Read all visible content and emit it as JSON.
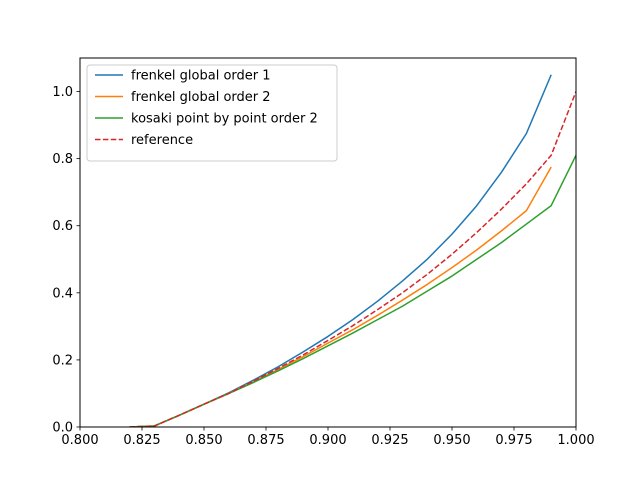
{
  "chart_data": {
    "type": "line",
    "title": "",
    "xlabel": "",
    "ylabel": "",
    "xlim": [
      0.8,
      1.0
    ],
    "ylim": [
      0.0,
      1.1
    ],
    "xticks": [
      0.8,
      0.825,
      0.85,
      0.875,
      0.9,
      0.925,
      0.95,
      0.975,
      1.0
    ],
    "xtick_labels": [
      "0.800",
      "0.825",
      "0.850",
      "0.875",
      "0.900",
      "0.925",
      "0.950",
      "0.975",
      "1.000"
    ],
    "yticks": [
      0.0,
      0.2,
      0.4,
      0.6,
      0.8,
      1.0
    ],
    "ytick_labels": [
      "0.0",
      "0.2",
      "0.4",
      "0.6",
      "0.8",
      "1.0"
    ],
    "grid": false,
    "legend_position": "top-left",
    "series": [
      {
        "name": "frenkel global order 1",
        "color": "#1f77b4",
        "style": "solid",
        "x": [
          0.82,
          0.83,
          0.84,
          0.85,
          0.86,
          0.87,
          0.88,
          0.89,
          0.9,
          0.91,
          0.92,
          0.93,
          0.94,
          0.95,
          0.96,
          0.97,
          0.98,
          0.99
        ],
        "y": [
          0.0,
          0.003,
          0.035,
          0.068,
          0.102,
          0.14,
          0.18,
          0.224,
          0.27,
          0.32,
          0.375,
          0.435,
          0.5,
          0.575,
          0.66,
          0.76,
          0.875,
          1.05
        ]
      },
      {
        "name": "frenkel global order 2",
        "color": "#ff7f0e",
        "style": "solid",
        "x": [
          0.82,
          0.83,
          0.84,
          0.85,
          0.86,
          0.87,
          0.88,
          0.89,
          0.9,
          0.91,
          0.92,
          0.93,
          0.94,
          0.95,
          0.96,
          0.97,
          0.98,
          0.99
        ],
        "y": [
          0.0,
          0.003,
          0.035,
          0.068,
          0.1,
          0.136,
          0.172,
          0.21,
          0.25,
          0.29,
          0.333,
          0.378,
          0.425,
          0.475,
          0.528,
          0.585,
          0.645,
          0.775
        ]
      },
      {
        "name": "kosaki point by point order 2",
        "color": "#2ca02c",
        "style": "solid",
        "x": [
          0.82,
          0.83,
          0.84,
          0.85,
          0.86,
          0.87,
          0.88,
          0.89,
          0.9,
          0.91,
          0.92,
          0.93,
          0.94,
          0.95,
          0.96,
          0.97,
          0.98,
          0.99,
          1.0
        ],
        "y": [
          0.0,
          0.003,
          0.035,
          0.068,
          0.1,
          0.133,
          0.168,
          0.204,
          0.242,
          0.28,
          0.32,
          0.36,
          0.405,
          0.45,
          0.5,
          0.55,
          0.605,
          0.66,
          0.81
        ]
      },
      {
        "name": "reference",
        "color": "#d62728",
        "style": "dashed",
        "x": [
          0.82,
          0.83,
          0.84,
          0.85,
          0.86,
          0.87,
          0.88,
          0.89,
          0.9,
          0.91,
          0.92,
          0.93,
          0.94,
          0.95,
          0.96,
          0.97,
          0.98,
          0.99,
          1.0
        ],
        "y": [
          0.0,
          0.003,
          0.035,
          0.068,
          0.1,
          0.137,
          0.175,
          0.215,
          0.258,
          0.302,
          0.35,
          0.4,
          0.455,
          0.515,
          0.58,
          0.65,
          0.725,
          0.81,
          1.0
        ]
      }
    ]
  }
}
